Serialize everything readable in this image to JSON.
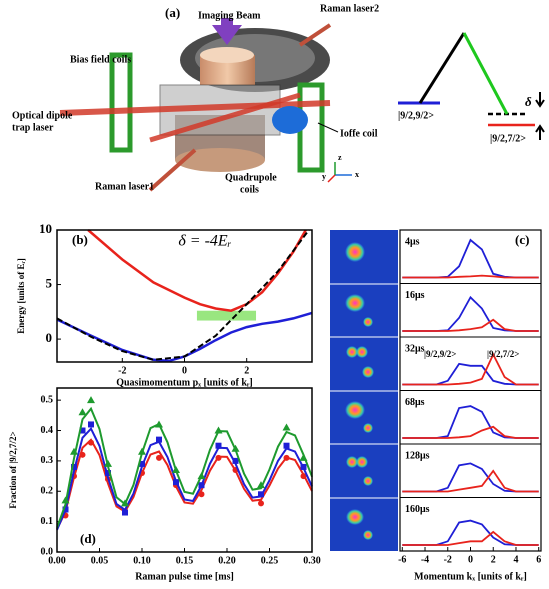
{
  "diagram": {
    "label": "(a)",
    "callouts": [
      [
        "Imaging Beam"
      ],
      [
        "Raman laser2"
      ],
      [
        "Bias field coils"
      ],
      [
        "Optical dipole",
        "trap laser"
      ],
      [
        "Ioffe coil"
      ],
      [
        "Raman laser1"
      ],
      [
        "Quadrupole",
        "coils"
      ]
    ],
    "axes": [
      "z",
      "y",
      "x"
    ],
    "levels": {
      "upper": "|9/2,9/2>",
      "lower": "|9/2,7/2>",
      "detuning": "δ"
    }
  },
  "chart_data": [
    {
      "type": "line",
      "label": "(b)",
      "title": "δ = -4Eᵣ",
      "x_label": "Quasimomentum pₓ [units of kᵣ]",
      "y_label": "Energy [units of Eᵣ]",
      "xlim": [
        -4.1,
        4.1
      ],
      "ylim": [
        -2.1,
        10
      ],
      "xticks": [
        -2,
        0,
        2
      ],
      "yticks": [
        0,
        5,
        10
      ],
      "series": [
        {
          "color": "#e8231c",
          "x": [
            -3.1,
            -2,
            -1,
            0,
            0.5,
            1,
            1.5,
            2,
            2.5,
            3,
            3.5,
            3.9
          ],
          "values": [
            10,
            7.3,
            5.2,
            3.8,
            3.2,
            2.8,
            2.6,
            3.2,
            4.3,
            6.0,
            8.0,
            10
          ]
        },
        {
          "color": "#1f1fd6",
          "x": [
            -4.1,
            -3,
            -2,
            -1,
            -0.5,
            0,
            0.5,
            1,
            1.5,
            2,
            2.5,
            3,
            3.5,
            4.1
          ],
          "values": [
            1.8,
            0.3,
            -1.0,
            -1.9,
            -2.0,
            -1.6,
            -0.9,
            -0.1,
            0.6,
            1.1,
            1.4,
            1.6,
            1.9,
            2.4
          ]
        },
        {
          "color": "#000000",
          "dash": true,
          "x": [
            -4.1,
            -3,
            -2,
            -1,
            0,
            1,
            2,
            3,
            4
          ],
          "values": [
            1.9,
            0.2,
            -1.1,
            -1.9,
            -1.6,
            0.3,
            3.2,
            6.2,
            10
          ]
        }
      ]
    },
    {
      "type": "fit-scatter",
      "label": "(d)",
      "x_label": "Raman pulse time [ms]",
      "y_label": "Fraction of |9/2,7/2>",
      "xlim": [
        0,
        0.3
      ],
      "ylim": [
        0,
        0.54
      ],
      "xticks": [
        {
          "value": 0,
          "label": "0.00"
        },
        0.05,
        {
          "value": 0.1,
          "label": "0.10"
        },
        0.15,
        {
          "value": 0.2,
          "label": "0.20"
        },
        0.25,
        {
          "value": 0.3,
          "label": "0.30"
        }
      ],
      "yticks": [
        {
          "value": 0,
          "label": "0.0"
        },
        0.1,
        0.2,
        0.3,
        0.4,
        0.5
      ],
      "x": [
        0,
        0.01,
        0.02,
        0.03,
        0.04,
        0.05,
        0.06,
        0.07,
        0.08,
        0.09,
        0.1,
        0.11,
        0.12,
        0.13,
        0.14,
        0.15,
        0.16,
        0.17,
        0.18,
        0.19,
        0.2,
        0.21,
        0.22,
        0.23,
        0.24,
        0.25,
        0.26,
        0.27,
        0.28,
        0.29,
        0.3
      ],
      "points_x": [
        0.01,
        0.02,
        0.03,
        0.04,
        0.06,
        0.08,
        0.1,
        0.12,
        0.14,
        0.17,
        0.19,
        0.21,
        0.24,
        0.27,
        0.29
      ],
      "series": [
        {
          "color": "#e8231c",
          "marker": "circle",
          "values": [
            0.075,
            0.133,
            0.246,
            0.343,
            0.369,
            0.319,
            0.226,
            0.15,
            0.133,
            0.181,
            0.26,
            0.321,
            0.331,
            0.286,
            0.216,
            0.163,
            0.159,
            0.204,
            0.268,
            0.314,
            0.313,
            0.268,
            0.208,
            0.169,
            0.172,
            0.219,
            0.275,
            0.311,
            0.303,
            0.255,
            0.201
          ],
          "points": [
            0.12,
            0.25,
            0.32,
            0.36,
            0.24,
            0.13,
            0.26,
            0.31,
            0.22,
            0.19,
            0.31,
            0.27,
            0.16,
            0.31,
            0.25
          ]
        },
        {
          "color": "#1f1fd6",
          "marker": "square",
          "values": [
            0.073,
            0.138,
            0.267,
            0.376,
            0.406,
            0.349,
            0.245,
            0.158,
            0.139,
            0.193,
            0.282,
            0.352,
            0.363,
            0.312,
            0.233,
            0.173,
            0.168,
            0.219,
            0.291,
            0.343,
            0.342,
            0.291,
            0.224,
            0.179,
            0.183,
            0.236,
            0.3,
            0.341,
            0.331,
            0.277,
            0.216
          ],
          "points": [
            0.14,
            0.28,
            0.4,
            0.42,
            0.26,
            0.13,
            0.29,
            0.37,
            0.23,
            0.22,
            0.35,
            0.3,
            0.19,
            0.35,
            0.28
          ]
        },
        {
          "color": "#1e9a2e",
          "marker": "triangle",
          "values": [
            0.08,
            0.157,
            0.308,
            0.437,
            0.472,
            0.405,
            0.282,
            0.18,
            0.158,
            0.221,
            0.326,
            0.408,
            0.421,
            0.361,
            0.268,
            0.198,
            0.192,
            0.252,
            0.337,
            0.398,
            0.397,
            0.337,
            0.258,
            0.205,
            0.21,
            0.272,
            0.347,
            0.395,
            0.384,
            0.32,
            0.248
          ],
          "points": [
            0.17,
            0.33,
            0.46,
            0.5,
            0.29,
            0.16,
            0.33,
            0.42,
            0.27,
            0.25,
            0.4,
            0.34,
            0.22,
            0.41,
            0.31
          ]
        }
      ]
    },
    {
      "type": "profiles",
      "label": "(c)",
      "x_label": "Momentum kₓ [units of kᵣ]",
      "xlim": [
        -6.2,
        6.2
      ],
      "xticks": [
        -6,
        -4,
        -2,
        0,
        2,
        4,
        6
      ],
      "x": [
        -6,
        -5,
        -4,
        -3,
        -2,
        -1,
        0,
        1,
        2,
        3,
        4,
        5,
        6
      ],
      "colors": {
        "blue": "#1f1fd6",
        "red": "#e8231c"
      },
      "states": [
        "|9/2,9/2>",
        "|9/2,7/2>"
      ],
      "rows": [
        {
          "label": "4μs",
          "blue": [
            0,
            0,
            0,
            0,
            0.02,
            0.3,
            1.0,
            0.75,
            0.1,
            0.02,
            0,
            0,
            0
          ],
          "red": [
            0,
            0,
            0,
            0,
            0,
            0.02,
            0.03,
            0.05,
            0.03,
            0,
            0,
            0,
            0
          ]
        },
        {
          "label": "16μs",
          "blue": [
            0,
            0,
            0,
            0,
            0.02,
            0.35,
            0.9,
            0.6,
            0.08,
            0.02,
            0,
            0,
            0
          ],
          "red": [
            0,
            0,
            0,
            0,
            0,
            0.02,
            0.05,
            0.1,
            0.3,
            0.05,
            0,
            0,
            0
          ]
        },
        {
          "label": "32μs",
          "blue": [
            0,
            0,
            0,
            0,
            0.1,
            0.55,
            0.5,
            0.5,
            0.1,
            0.02,
            0,
            0,
            0
          ],
          "red": [
            0,
            0,
            0,
            0,
            0,
            0.02,
            0.05,
            0.15,
            0.8,
            0.2,
            0,
            0,
            0
          ]
        },
        {
          "label": "68μs",
          "blue": [
            0,
            0,
            0,
            0,
            0.05,
            0.8,
            0.85,
            0.7,
            0.15,
            0.02,
            0,
            0,
            0
          ],
          "red": [
            0,
            0,
            0,
            0,
            0,
            0.02,
            0.05,
            0.2,
            0.3,
            0.05,
            0,
            0,
            0
          ]
        },
        {
          "label": "128μs",
          "blue": [
            0,
            0,
            0,
            0,
            0.1,
            0.7,
            0.75,
            0.6,
            0.2,
            0.02,
            0,
            0,
            0
          ],
          "red": [
            0,
            0,
            0,
            0,
            0,
            0.05,
            0.1,
            0.15,
            0.55,
            0.1,
            0,
            0,
            0
          ]
        },
        {
          "label": "160μs",
          "blue": [
            0,
            0,
            0,
            0,
            0.1,
            0.6,
            0.65,
            0.55,
            0.2,
            0.02,
            0,
            0,
            0
          ],
          "red": [
            0,
            0,
            0,
            0,
            0,
            0.05,
            0.1,
            0.1,
            0.35,
            0.1,
            0,
            0,
            0
          ]
        }
      ]
    }
  ]
}
